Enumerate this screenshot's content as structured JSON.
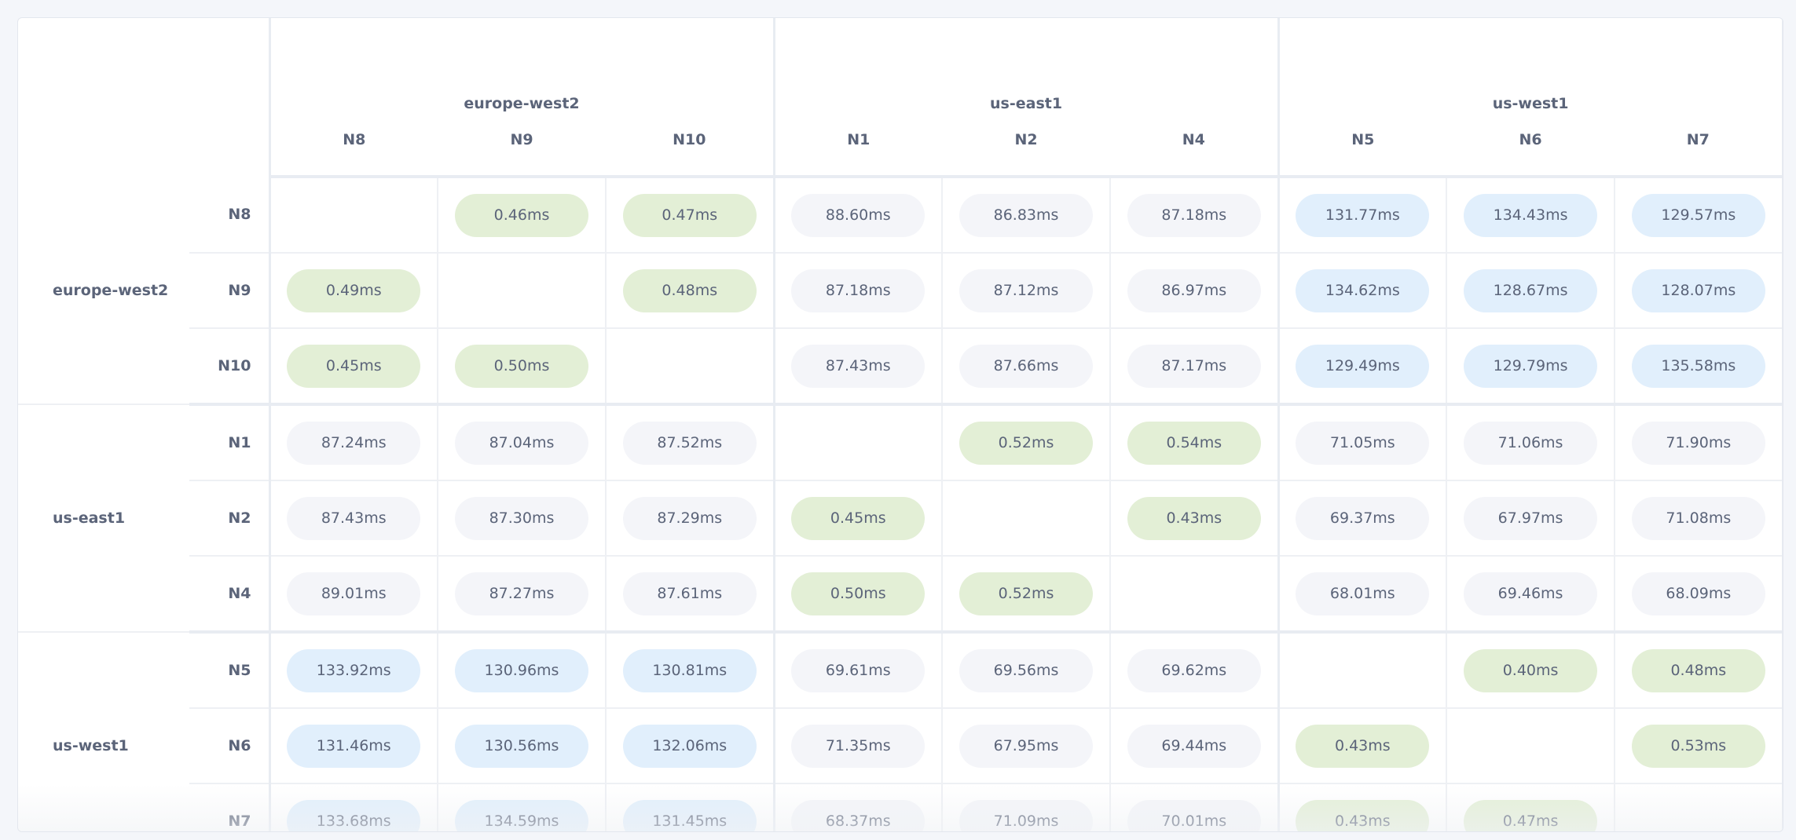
{
  "regions": [
    {
      "name": "europe-west2",
      "nodes": [
        "N8",
        "N9",
        "N10"
      ]
    },
    {
      "name": "us-east1",
      "nodes": [
        "N1",
        "N2",
        "N4"
      ]
    },
    {
      "name": "us-west1",
      "nodes": [
        "N5",
        "N6",
        "N7"
      ]
    }
  ],
  "colors": {
    "same_region": "#e3efd6",
    "mid_latency": "#f4f5f9",
    "high_latency": "#e1effc",
    "text": "#5b6479"
  },
  "latency_matrix": [
    [
      "",
      "0.46ms",
      "0.47ms",
      "88.60ms",
      "86.83ms",
      "87.18ms",
      "131.77ms",
      "134.43ms",
      "129.57ms"
    ],
    [
      "0.49ms",
      "",
      "0.48ms",
      "87.18ms",
      "87.12ms",
      "86.97ms",
      "134.62ms",
      "128.67ms",
      "128.07ms"
    ],
    [
      "0.45ms",
      "0.50ms",
      "",
      "87.43ms",
      "87.66ms",
      "87.17ms",
      "129.49ms",
      "129.79ms",
      "135.58ms"
    ],
    [
      "87.24ms",
      "87.04ms",
      "87.52ms",
      "",
      "0.52ms",
      "0.54ms",
      "71.05ms",
      "71.06ms",
      "71.90ms"
    ],
    [
      "87.43ms",
      "87.30ms",
      "87.29ms",
      "0.45ms",
      "",
      "0.43ms",
      "69.37ms",
      "67.97ms",
      "71.08ms"
    ],
    [
      "89.01ms",
      "87.27ms",
      "87.61ms",
      "0.50ms",
      "0.52ms",
      "",
      "68.01ms",
      "69.46ms",
      "68.09ms"
    ],
    [
      "133.92ms",
      "130.96ms",
      "130.81ms",
      "69.61ms",
      "69.56ms",
      "69.62ms",
      "",
      "0.40ms",
      "0.48ms"
    ],
    [
      "131.46ms",
      "130.56ms",
      "132.06ms",
      "71.35ms",
      "67.95ms",
      "69.44ms",
      "0.43ms",
      "",
      "0.53ms"
    ],
    [
      "133.68ms",
      "134.59ms",
      "131.45ms",
      "68.37ms",
      "71.09ms",
      "70.01ms",
      "0.43ms",
      "0.47ms",
      ""
    ]
  ]
}
